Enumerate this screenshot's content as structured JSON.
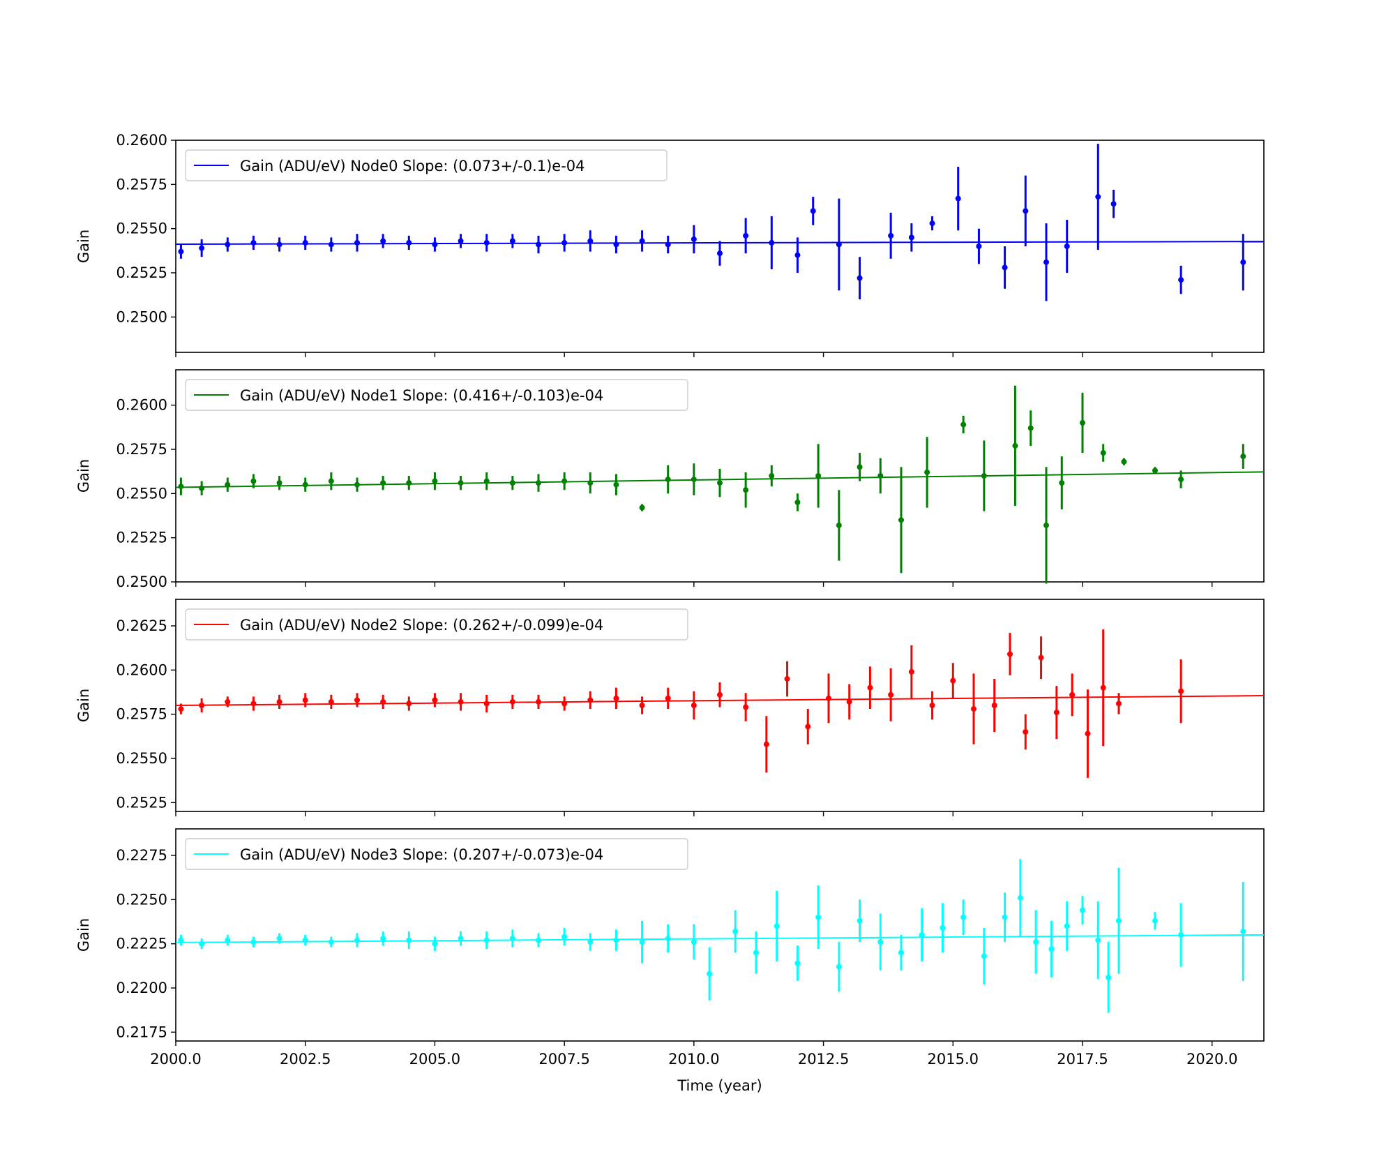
{
  "figure": {
    "x_axis_label": "Time (year)"
  },
  "chart_data": [
    {
      "type": "scatter",
      "ylabel": "Gain",
      "xlim": [
        2000.0,
        2021.0
      ],
      "ylim": [
        0.248,
        0.26
      ],
      "yticks": [
        "0.2500",
        "0.2525",
        "0.2550",
        "0.2575",
        "0.2600"
      ],
      "legend": "Gain (ADU/eV) Node0 Slope: (0.073+/-0.1)e-04",
      "legend_position": "top-left",
      "color": "#0000ff",
      "fit": {
        "intercept": 0.25412,
        "slope": 7.3e-06,
        "x0": 2000.0
      },
      "series": [
        {
          "x": [
            2000.1,
            2000.5,
            2001.0,
            2001.5,
            2002.0,
            2002.5,
            2003.0,
            2003.5,
            2004.0,
            2004.5,
            2005.0,
            2005.5,
            2006.0,
            2006.5,
            2007.0,
            2007.5,
            2008.0,
            2008.5,
            2009.0,
            2009.5,
            2010.0,
            2010.5,
            2011.0,
            2011.5,
            2012.0,
            2012.3,
            2012.8,
            2013.2,
            2013.8,
            2014.2,
            2014.6,
            2015.1,
            2015.5,
            2016.0,
            2016.4,
            2016.8,
            2017.2,
            2017.8,
            2018.1,
            2019.4,
            2020.6
          ],
          "y": [
            0.2537,
            0.2539,
            0.2541,
            0.2542,
            0.2541,
            0.2542,
            0.2541,
            0.2542,
            0.2543,
            0.2542,
            0.2541,
            0.2543,
            0.2542,
            0.2543,
            0.2541,
            0.2542,
            0.2543,
            0.2541,
            0.2543,
            0.2541,
            0.2544,
            0.2536,
            0.2546,
            0.2542,
            0.2535,
            0.256,
            0.2541,
            0.2522,
            0.2546,
            0.2545,
            0.2553,
            0.2567,
            0.254,
            0.2528,
            0.256,
            0.2531,
            0.254,
            0.2568,
            0.2564,
            0.2521,
            0.2531
          ],
          "err": [
            0.0004,
            0.0005,
            0.0004,
            0.0004,
            0.0004,
            0.0004,
            0.0004,
            0.0005,
            0.0004,
            0.0004,
            0.0004,
            0.0004,
            0.0005,
            0.0004,
            0.0005,
            0.0005,
            0.0006,
            0.0005,
            0.0006,
            0.0005,
            0.0008,
            0.0007,
            0.001,
            0.0015,
            0.001,
            0.0008,
            0.0026,
            0.0012,
            0.0013,
            0.0008,
            0.0004,
            0.0018,
            0.001,
            0.0012,
            0.002,
            0.0022,
            0.0015,
            0.003,
            0.0008,
            0.0008,
            0.0016
          ]
        }
      ]
    },
    {
      "type": "scatter",
      "ylabel": "Gain",
      "xlim": [
        2000.0,
        2021.0
      ],
      "ylim": [
        0.25,
        0.262
      ],
      "yticks": [
        "0.2500",
        "0.2525",
        "0.2550",
        "0.2575",
        "0.2600"
      ],
      "legend": "Gain (ADU/eV) Node1 Slope: (0.416+/-0.103)e-04",
      "legend_position": "top-left",
      "color": "#008000",
      "fit": {
        "intercept": 0.25535,
        "slope": 4.16e-05,
        "x0": 2000.0
      },
      "series": [
        {
          "x": [
            2000.1,
            2000.5,
            2001.0,
            2001.5,
            2002.0,
            2002.5,
            2003.0,
            2003.5,
            2004.0,
            2004.5,
            2005.0,
            2005.5,
            2006.0,
            2006.5,
            2007.0,
            2007.5,
            2008.0,
            2008.5,
            2009.0,
            2009.5,
            2010.0,
            2010.5,
            2011.0,
            2011.5,
            2012.0,
            2012.4,
            2012.8,
            2013.2,
            2013.6,
            2014.0,
            2014.5,
            2015.2,
            2015.6,
            2016.2,
            2016.5,
            2016.8,
            2017.1,
            2017.5,
            2017.9,
            2018.3,
            2018.9,
            2019.4,
            2020.6
          ],
          "y": [
            0.2554,
            0.2553,
            0.2555,
            0.2557,
            0.2556,
            0.2555,
            0.2557,
            0.2555,
            0.2556,
            0.2556,
            0.2557,
            0.2556,
            0.2557,
            0.2556,
            0.2556,
            0.2557,
            0.2556,
            0.2555,
            0.2542,
            0.2558,
            0.2558,
            0.2556,
            0.2552,
            0.256,
            0.2545,
            0.256,
            0.2532,
            0.2565,
            0.256,
            0.2535,
            0.2562,
            0.2589,
            0.256,
            0.2577,
            0.2587,
            0.2532,
            0.2556,
            0.259,
            0.2573,
            0.2568,
            0.2563,
            0.2558,
            0.2571
          ],
          "err": [
            0.0005,
            0.0004,
            0.0004,
            0.0004,
            0.0004,
            0.0004,
            0.0005,
            0.0004,
            0.0004,
            0.0004,
            0.0005,
            0.0004,
            0.0005,
            0.0004,
            0.0005,
            0.0005,
            0.0006,
            0.0006,
            0.0002,
            0.0008,
            0.0009,
            0.0008,
            0.001,
            0.0006,
            0.0005,
            0.0018,
            0.002,
            0.0008,
            0.001,
            0.003,
            0.002,
            0.0005,
            0.002,
            0.0034,
            0.001,
            0.0033,
            0.0015,
            0.0017,
            0.0005,
            0.0002,
            0.0002,
            0.0005,
            0.0007
          ]
        }
      ]
    },
    {
      "type": "scatter",
      "ylabel": "Gain",
      "xlim": [
        2000.0,
        2021.0
      ],
      "ylim": [
        0.252,
        0.264
      ],
      "yticks": [
        "0.2525",
        "0.2550",
        "0.2575",
        "0.2600",
        "0.2625"
      ],
      "legend": "Gain (ADU/eV) Node2 Slope: (0.262+/-0.099)e-04",
      "legend_position": "top-left",
      "color": "#ff0000",
      "fit": {
        "intercept": 0.258,
        "slope": 2.62e-05,
        "x0": 2000.0
      },
      "series": [
        {
          "x": [
            2000.1,
            2000.5,
            2001.0,
            2001.5,
            2002.0,
            2002.5,
            2003.0,
            2003.5,
            2004.0,
            2004.5,
            2005.0,
            2005.5,
            2006.0,
            2006.5,
            2007.0,
            2007.5,
            2008.0,
            2008.5,
            2009.0,
            2009.5,
            2010.0,
            2010.5,
            2011.0,
            2011.4,
            2011.8,
            2012.2,
            2012.6,
            2013.0,
            2013.4,
            2013.8,
            2014.2,
            2014.6,
            2015.0,
            2015.4,
            2015.8,
            2016.1,
            2016.4,
            2016.7,
            2017.0,
            2017.3,
            2017.6,
            2017.9,
            2018.2,
            2019.4
          ],
          "y": [
            0.2578,
            0.258,
            0.2582,
            0.2581,
            0.2582,
            0.2583,
            0.2582,
            0.2583,
            0.2582,
            0.2581,
            0.2583,
            0.2582,
            0.2581,
            0.2582,
            0.2582,
            0.2581,
            0.2583,
            0.2584,
            0.258,
            0.2584,
            0.258,
            0.2586,
            0.2579,
            0.2558,
            0.2595,
            0.2568,
            0.2584,
            0.2582,
            0.259,
            0.2586,
            0.2599,
            0.258,
            0.2594,
            0.2578,
            0.258,
            0.2609,
            0.2565,
            0.2607,
            0.2576,
            0.2586,
            0.2564,
            0.259,
            0.2581,
            0.2588
          ],
          "err": [
            0.0003,
            0.0004,
            0.0003,
            0.0004,
            0.0004,
            0.0004,
            0.0004,
            0.0004,
            0.0004,
            0.0004,
            0.0004,
            0.0005,
            0.0005,
            0.0004,
            0.0004,
            0.0004,
            0.0005,
            0.0006,
            0.0005,
            0.0006,
            0.0008,
            0.0007,
            0.0008,
            0.0016,
            0.001,
            0.001,
            0.0014,
            0.001,
            0.0012,
            0.0015,
            0.0015,
            0.0008,
            0.001,
            0.002,
            0.0015,
            0.0012,
            0.001,
            0.0012,
            0.0015,
            0.0012,
            0.0025,
            0.0033,
            0.0006,
            0.0018
          ]
        }
      ]
    },
    {
      "type": "scatter",
      "ylabel": "Gain",
      "xlim": [
        2000.0,
        2021.0
      ],
      "ylim": [
        0.217,
        0.229
      ],
      "yticks": [
        "0.2175",
        "0.2200",
        "0.2225",
        "0.2250",
        "0.2275"
      ],
      "legend": "Gain (ADU/eV) Node3 Slope: (0.207+/-0.073)e-04",
      "legend_position": "top-left",
      "color": "#00ffff",
      "fit": {
        "intercept": 0.22257,
        "slope": 2.07e-05,
        "x0": 2000.0
      },
      "series": [
        {
          "x": [
            2000.1,
            2000.5,
            2001.0,
            2001.5,
            2002.0,
            2002.5,
            2003.0,
            2003.5,
            2004.0,
            2004.5,
            2005.0,
            2005.5,
            2006.0,
            2006.5,
            2007.0,
            2007.5,
            2008.0,
            2008.5,
            2009.0,
            2009.5,
            2010.0,
            2010.3,
            2010.8,
            2011.2,
            2011.6,
            2012.0,
            2012.4,
            2012.8,
            2013.2,
            2013.6,
            2014.0,
            2014.4,
            2014.8,
            2015.2,
            2015.6,
            2016.0,
            2016.3,
            2016.6,
            2016.9,
            2017.2,
            2017.5,
            2017.8,
            2018.0,
            2018.2,
            2018.9,
            2019.4,
            2020.6
          ],
          "y": [
            0.2227,
            0.2225,
            0.2227,
            0.2226,
            0.2228,
            0.2227,
            0.2226,
            0.2227,
            0.2228,
            0.2227,
            0.2225,
            0.2228,
            0.2227,
            0.2228,
            0.2227,
            0.2229,
            0.2226,
            0.2227,
            0.2226,
            0.2228,
            0.2226,
            0.2208,
            0.2232,
            0.222,
            0.2235,
            0.2214,
            0.224,
            0.2212,
            0.2238,
            0.2226,
            0.222,
            0.223,
            0.2234,
            0.224,
            0.2218,
            0.224,
            0.2251,
            0.2226,
            0.2222,
            0.2235,
            0.2244,
            0.2227,
            0.2206,
            0.2238,
            0.2238,
            0.223,
            0.2232
          ],
          "err": [
            0.0003,
            0.0003,
            0.0003,
            0.0003,
            0.0003,
            0.0003,
            0.0003,
            0.0004,
            0.0004,
            0.0005,
            0.0004,
            0.0004,
            0.0005,
            0.0005,
            0.0004,
            0.0005,
            0.0005,
            0.0006,
            0.0012,
            0.0008,
            0.001,
            0.0015,
            0.0012,
            0.0012,
            0.002,
            0.001,
            0.0018,
            0.0014,
            0.0012,
            0.0016,
            0.001,
            0.0015,
            0.0014,
            0.001,
            0.0016,
            0.0014,
            0.0022,
            0.0018,
            0.0016,
            0.0014,
            0.0008,
            0.0022,
            0.002,
            0.003,
            0.0005,
            0.0018,
            0.0028
          ]
        }
      ]
    }
  ],
  "x_ticks": [
    "2000.0",
    "2002.5",
    "2005.0",
    "2007.5",
    "2010.0",
    "2012.5",
    "2015.0",
    "2017.5",
    "2020.0"
  ]
}
